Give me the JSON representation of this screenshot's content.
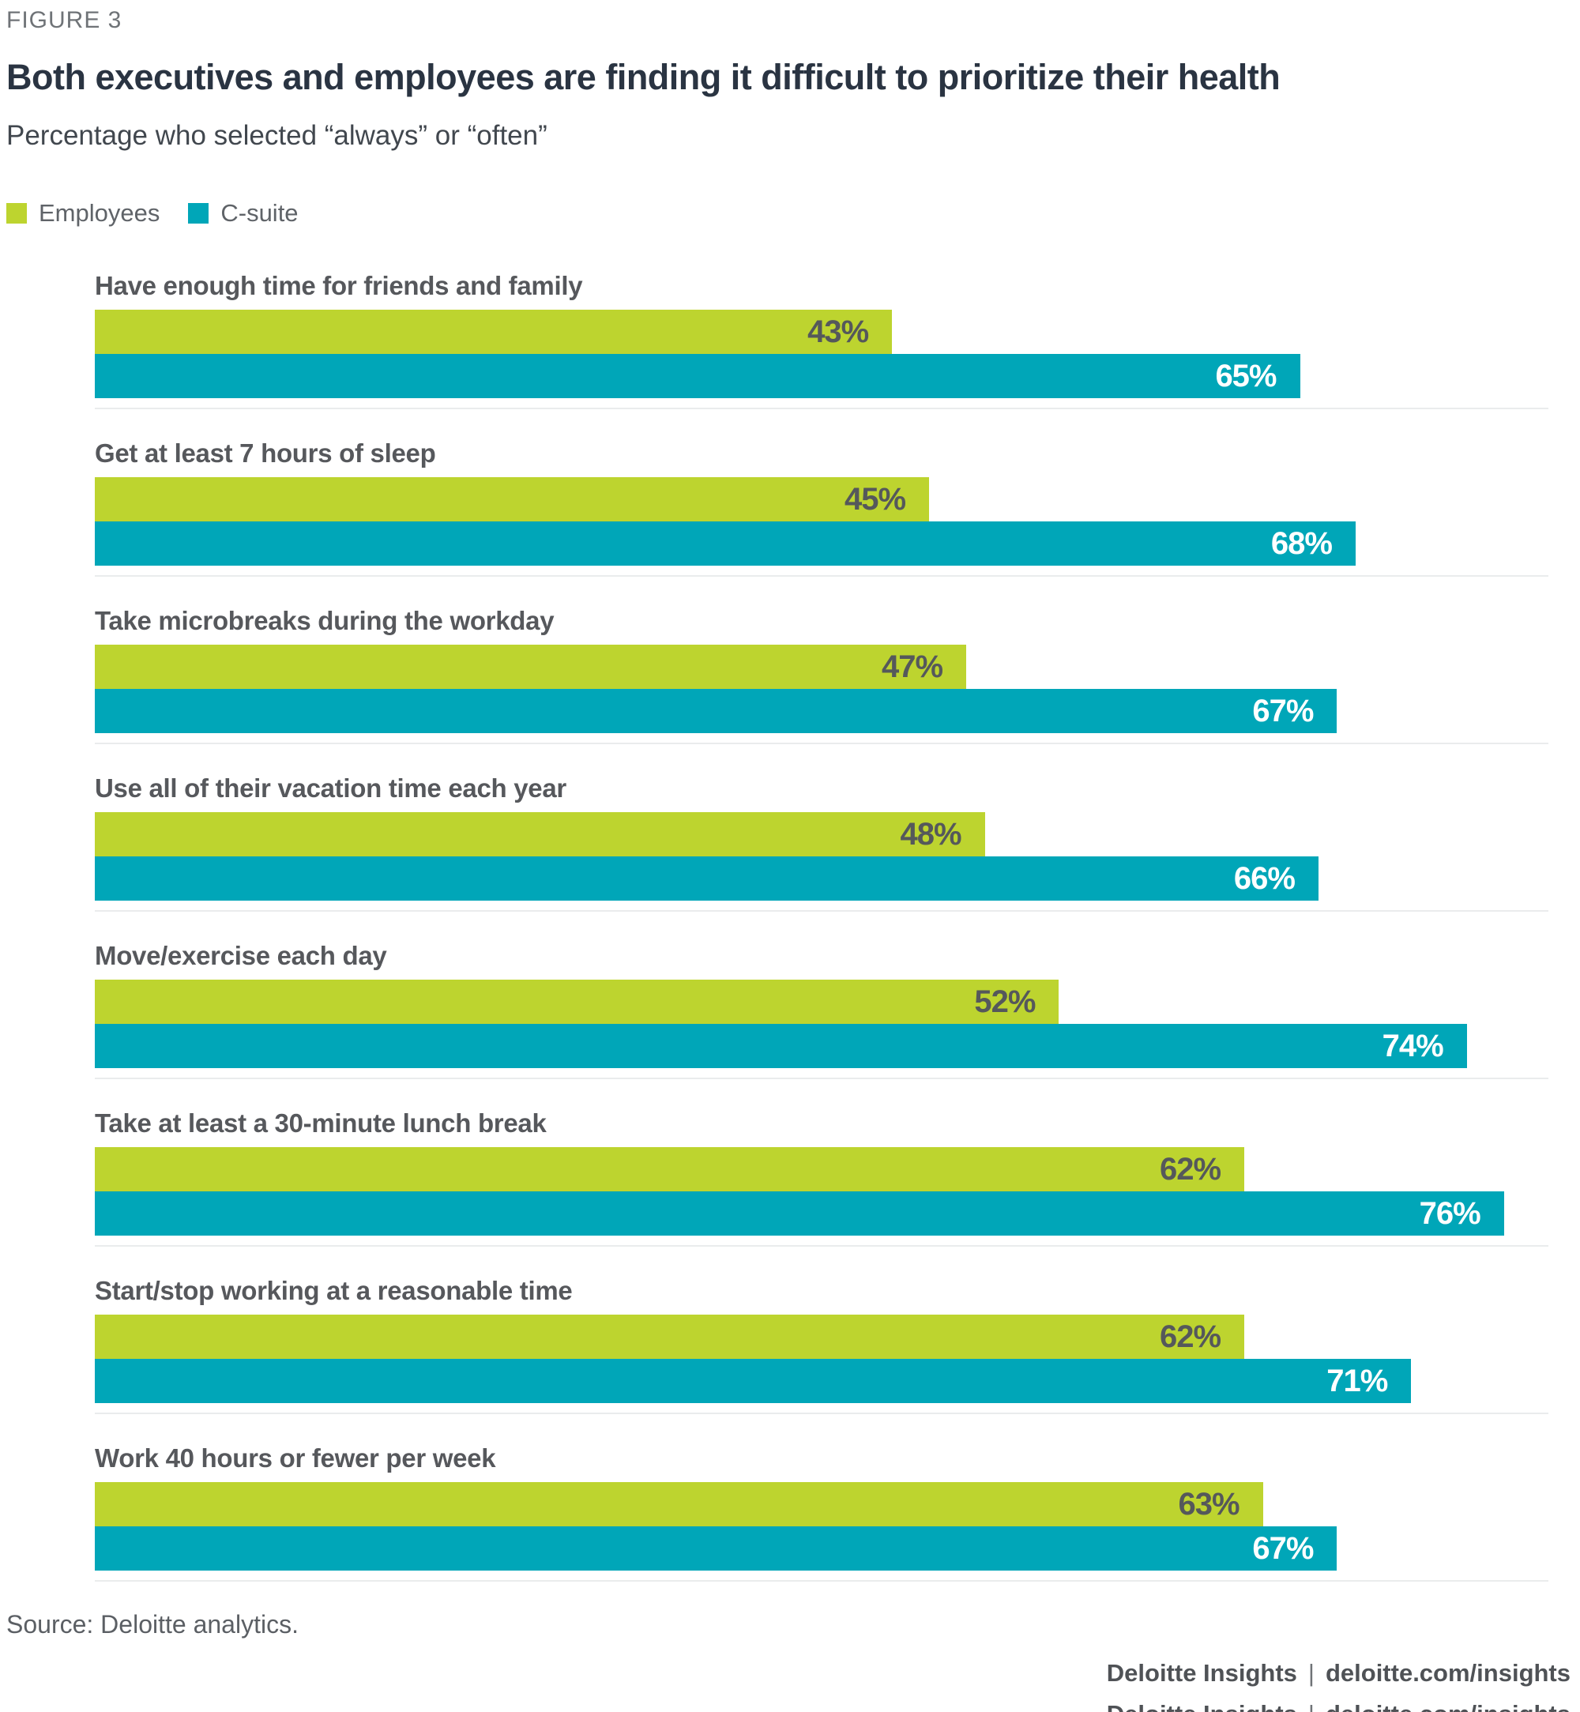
{
  "figure_label": "FIGURE 3",
  "title": "Both executives and employees are finding it difficult to prioritize their health",
  "subtitle": "Percentage who selected “always” or “often”",
  "legend": [
    {
      "label": "Employees",
      "color": "#bdd42f"
    },
    {
      "label": "C-suite",
      "color": "#00a6b8"
    }
  ],
  "colors": {
    "employees_bar": "#bdd42f",
    "csuite_bar": "#00a6b8",
    "employees_value_text": "#55585b",
    "csuite_value_text": "#ffffff",
    "title_text": "#2a3442",
    "category_text": "#56585c"
  },
  "chart_data": {
    "type": "bar",
    "orientation": "horizontal",
    "title": "Both executives and employees are finding it difficult to prioritize their health",
    "subtitle": "Percentage who selected “always” or “often”",
    "xlabel": "",
    "ylabel": "",
    "xlim": [
      0,
      78.4
    ],
    "grid": false,
    "legend_position": "top-left",
    "value_label_format": "{value}%",
    "categories": [
      "Have enough time for friends and family",
      "Get at least 7 hours of sleep",
      "Take microbreaks during the workday",
      "Use all of their vacation time each year",
      "Move/exercise each day",
      "Take at least a 30-minute lunch break",
      "Start/stop working at a reasonable time",
      "Work 40 hours or fewer per week"
    ],
    "series": [
      {
        "name": "Employees",
        "values": [
          43,
          45,
          47,
          48,
          52,
          62,
          62,
          63
        ]
      },
      {
        "name": "C-suite",
        "values": [
          65,
          68,
          67,
          66,
          74,
          76,
          71,
          67
        ]
      }
    ]
  },
  "source": "Source: Deloitte analytics.",
  "footer": {
    "brand": "Deloitte Insights",
    "divider": "|",
    "site": "deloitte.com/insights"
  }
}
